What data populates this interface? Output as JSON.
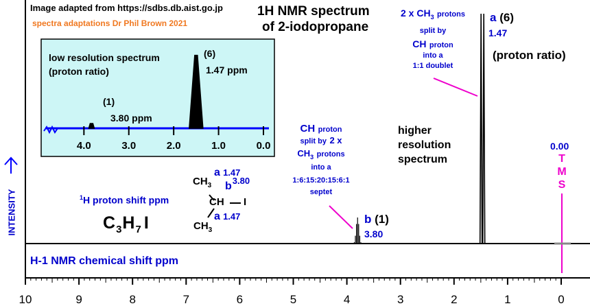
{
  "credits": {
    "source": "Image adapted from https://sdbs.db.aist.go.jp",
    "author": "spectra adaptations Dr Phil Brown 2021"
  },
  "title": {
    "line1": "1H NMR spectrum",
    "line2": "of 2-iodopropane"
  },
  "inset": {
    "heading1": "low resolution spectrum",
    "heading2": "(proton ratio)",
    "peak_a_ratio": "(6)",
    "peak_a_shift": "1.47 ppm",
    "peak_b_ratio": "(1)",
    "peak_b_shift": "3.80 ppm",
    "ticks": [
      "4.0",
      "3.0",
      "2.0",
      "1.0",
      "0.0"
    ]
  },
  "molecule": {
    "shift_label_pre": "1",
    "shift_label_post": "H proton shift  ppm",
    "formula": [
      "C",
      "3",
      "H",
      "7",
      "I"
    ],
    "ch3_top": "CH",
    "ch3_top_sub": "3",
    "ch": "CH",
    "iodine": "I",
    "ch3_bottom": "CH",
    "ch3_bottom_sub": "3",
    "label_a_top": "a",
    "label_a_top_shift": "1.47",
    "label_b": "b",
    "label_b_shift": "3.80",
    "label_a_bottom": "a",
    "label_a_bottom_shift": "1.47"
  },
  "annotations": {
    "ch_proton": [
      "CH",
      "proton",
      "split by",
      "2 x",
      "CH",
      "3",
      "protons",
      "into a",
      "1:6:15:20:15:6:1",
      "septet"
    ],
    "ch3_protons": [
      "2 x CH",
      "3",
      "protons",
      "split by",
      "CH",
      "proton",
      "into a",
      "1:1 doublet"
    ],
    "higher_res": [
      "higher",
      "resolution",
      "spectrum"
    ],
    "proton_ratio": "(proton ratio)",
    "peak_a_letter": "a",
    "peak_a_ratio": "(6)",
    "peak_a_shift": "1.47",
    "peak_b_letter": "b",
    "peak_b_ratio": "(1)",
    "peak_b_shift": "3.80",
    "tms_value": "0.00",
    "tms_letters": [
      "T",
      "M",
      "S"
    ]
  },
  "axis": {
    "ylabel": "INTENSITY",
    "xlabel": "H-1 NMR chemical shift  ppm",
    "ticks": [
      "10",
      "9",
      "8",
      "7",
      "6",
      "5",
      "4",
      "3",
      "2",
      "1",
      "0"
    ]
  },
  "colors": {
    "blue": "#0000cc",
    "magenta": "#ee00cc",
    "orange": "#f07820",
    "inset_bg": "#cdf6f6",
    "blue_axis": "#0000ff"
  },
  "chart_data": {
    "type": "line",
    "title": "1H NMR spectrum of 2-iodopropane",
    "xlabel": "H-1 NMR chemical shift  ppm",
    "ylabel": "INTENSITY",
    "xlim": [
      10,
      0
    ],
    "x_reversed": true,
    "peaks": [
      {
        "label": "a",
        "shift_ppm": 1.47,
        "proton_ratio": 6,
        "multiplicity": "doublet",
        "pattern": "1:1"
      },
      {
        "label": "b",
        "shift_ppm": 3.8,
        "proton_ratio": 1,
        "multiplicity": "septet",
        "pattern": "1:6:15:20:15:6:1"
      }
    ],
    "reference": {
      "label": "TMS",
      "shift_ppm": 0.0
    },
    "inset": {
      "type": "line",
      "title": "low resolution spectrum (proton ratio)",
      "xlim": [
        4.8,
        0
      ],
      "peaks": [
        {
          "shift_ppm": 3.8,
          "proton_ratio": 1
        },
        {
          "shift_ppm": 1.47,
          "proton_ratio": 6
        }
      ]
    }
  }
}
